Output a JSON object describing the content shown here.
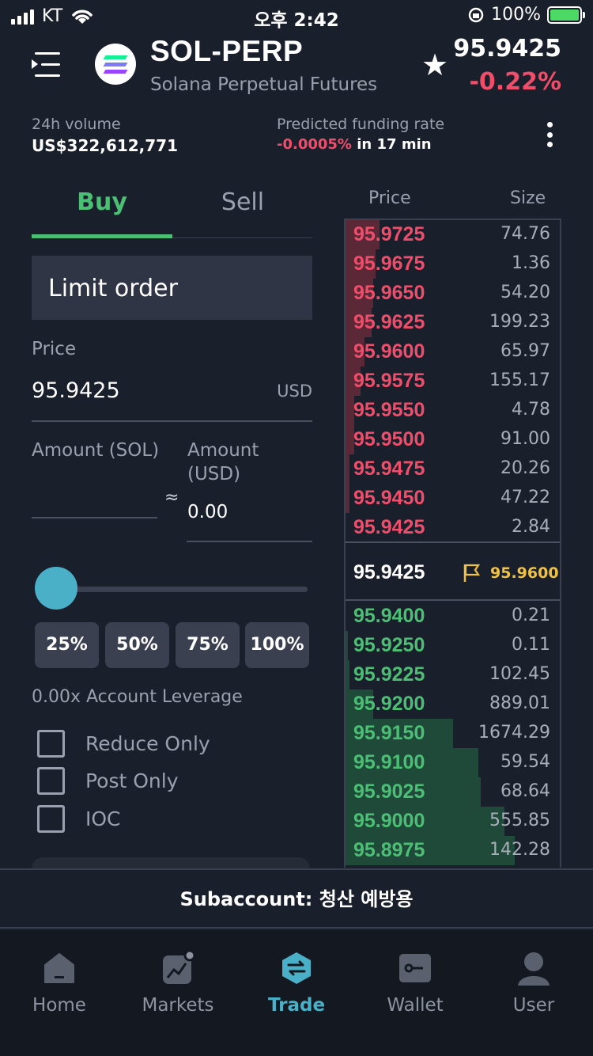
{
  "status_bar": {
    "carrier": "KT",
    "time": "오후 2:42",
    "battery": "100%"
  },
  "header": {
    "symbol": "SOL-PERP",
    "name": "Solana Perpetual Futures",
    "price": "95.9425",
    "change": "-0.22%"
  },
  "stats": {
    "volume_label": "24h volume",
    "volume_value": "US$322,612,771",
    "funding_label": "Predicted funding rate",
    "funding_rate": "-0.0005%",
    "funding_time": "in 17 min"
  },
  "form": {
    "tabs": {
      "buy": "Buy",
      "sell": "Sell"
    },
    "order_type": "Limit order",
    "price_label": "Price",
    "price_value": "95.9425",
    "price_unit": "USD",
    "amount_sol_label": "Amount (SOL)",
    "amount_usd_label_1": "Amount",
    "amount_usd_label_2": "(USD)",
    "approx": "≈",
    "amount_usd_value": "0.00",
    "slider_value": 0,
    "percent_buttons": [
      "25%",
      "50%",
      "75%",
      "100%"
    ],
    "leverage": "0.00x Account Leverage",
    "options": [
      "Reduce Only",
      "Post Only",
      "IOC"
    ]
  },
  "orderbook": {
    "price_header": "Price",
    "size_header": "Size",
    "asks": [
      {
        "price": "95.9725",
        "size": "74.76",
        "depth": 0.16
      },
      {
        "price": "95.9675",
        "size": "1.36",
        "depth": 0.14
      },
      {
        "price": "95.9650",
        "size": "54.20",
        "depth": 0.13
      },
      {
        "price": "95.9625",
        "size": "199.23",
        "depth": 0.12
      },
      {
        "price": "95.9600",
        "size": "65.97",
        "depth": 0.09
      },
      {
        "price": "95.9575",
        "size": "155.17",
        "depth": 0.07
      },
      {
        "price": "95.9550",
        "size": "4.78",
        "depth": 0.04
      },
      {
        "price": "95.9500",
        "size": "91.00",
        "depth": 0.04
      },
      {
        "price": "95.9475",
        "size": "20.26",
        "depth": 0.02
      },
      {
        "price": "95.9450",
        "size": "47.22",
        "depth": 0.02
      },
      {
        "price": "95.9425",
        "size": "2.84",
        "depth": 0.0
      }
    ],
    "mid_price": "95.9425",
    "mark_price": "95.9600",
    "bids": [
      {
        "price": "95.9400",
        "size": "0.21",
        "depth": 0.0
      },
      {
        "price": "95.9250",
        "size": "0.11",
        "depth": 0.01
      },
      {
        "price": "95.9225",
        "size": "102.45",
        "depth": 0.02
      },
      {
        "price": "95.9200",
        "size": "889.01",
        "depth": 0.13
      },
      {
        "price": "95.9150",
        "size": "1674.29",
        "depth": 0.5
      },
      {
        "price": "95.9100",
        "size": "59.54",
        "depth": 0.62
      },
      {
        "price": "95.9025",
        "size": "68.64",
        "depth": 0.63
      },
      {
        "price": "95.9000",
        "size": "555.85",
        "depth": 0.74
      },
      {
        "price": "95.8975",
        "size": "142.28",
        "depth": 0.79
      }
    ]
  },
  "subaccount": "Subaccount: 청산 예방용",
  "nav": [
    {
      "label": "Home",
      "icon": "home-icon"
    },
    {
      "label": "Markets",
      "icon": "chart-icon"
    },
    {
      "label": "Trade",
      "icon": "swap-icon"
    },
    {
      "label": "Wallet",
      "icon": "wallet-icon"
    },
    {
      "label": "User",
      "icon": "user-icon"
    }
  ],
  "colors": {
    "background": "#1a1f2c",
    "buy_green": "#4bbf73",
    "sell_red": "#f04d6a",
    "accent": "#4ab0c8",
    "mark_yellow": "#f0c244"
  }
}
